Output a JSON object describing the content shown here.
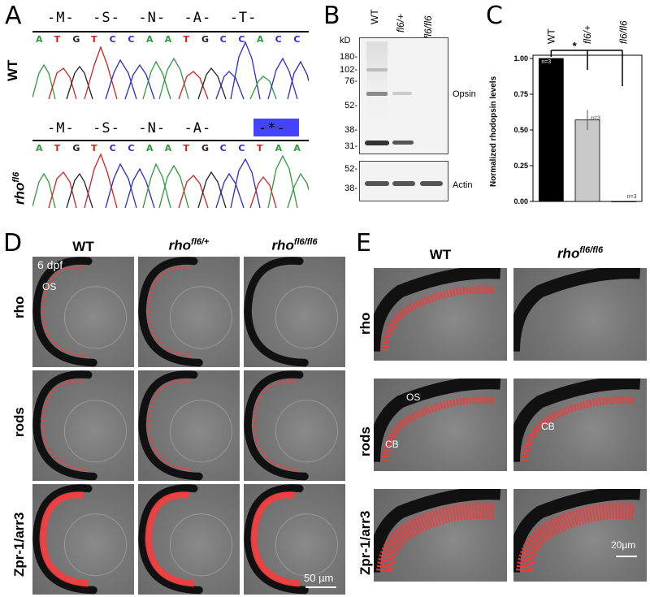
{
  "panels": [
    "A",
    "B",
    "C",
    "D",
    "E"
  ],
  "panel_a": {
    "wt_label": "WT",
    "mut_label_base": "rho",
    "mut_label_sup": "fl6",
    "wt_aa": "-M-  -S-  -N-  -A-  -T-",
    "mut_aa": "-M-  -S-  -N-  -A-",
    "stop_text": "-*-",
    "wt_bases": [
      "A",
      "T",
      "G",
      "T",
      "C",
      "C",
      "A",
      "A",
      "T",
      "G",
      "C",
      "C",
      "A",
      "C",
      "C"
    ],
    "mut_bases": [
      "A",
      "T",
      "G",
      "T",
      "C",
      "C",
      "A",
      "A",
      "T",
      "G",
      "C",
      "C",
      "T",
      "A",
      "A"
    ],
    "base_colors": {
      "A": "#2e9a3a",
      "T": "#d62020",
      "G": "#222222",
      "C": "#2a2ad0"
    },
    "stop_color": "#4444ff"
  },
  "panel_b": {
    "kd_label": "kD",
    "columns": [
      "WT",
      "fl6/+",
      "fl6/fl6"
    ],
    "opsin_markers": [
      "180-",
      "102-",
      "76-",
      "52-",
      "38-",
      "31-"
    ],
    "actin_markers": [
      "52-",
      "38-"
    ],
    "opsin_label": "Opsin",
    "actin_label": "Actin"
  },
  "panel_c": {
    "columns": [
      "WT",
      "fl6/+",
      "fl6/fl6"
    ],
    "star": "*",
    "ytick_labels": [
      "1.00",
      "0.75",
      "0.50",
      "0.25",
      "0.00"
    ],
    "ylabel": "Normalized rhodopsin levels",
    "n_labels": [
      "n=3",
      "n=3",
      "n=3"
    ]
  },
  "chart_data": {
    "type": "bar",
    "categories": [
      "WT",
      "fl6/+",
      "fl6/fl6"
    ],
    "values": [
      1.0,
      0.57,
      0.0
    ],
    "errors": [
      0,
      0.07,
      0
    ],
    "ylabel": "Normalized rhodopsin levels",
    "ylim": [
      0,
      1.0
    ],
    "yticks": [
      0.0,
      0.25,
      0.5,
      0.75,
      1.0
    ],
    "bar_colors": [
      "#000000",
      "#c8c8c8",
      "#ffffff"
    ],
    "n": [
      "n=3",
      "n=3",
      "n=3"
    ],
    "significance": "*",
    "grid": false
  },
  "panel_d": {
    "col_wt": "WT",
    "col_het_base": "rho",
    "col_het_sup": "fl6/+",
    "col_hom_base": "rho",
    "col_hom_sup": "fl6/fl6",
    "rows": [
      "rho",
      "rods",
      "Zpr-1/arr3"
    ],
    "stage": "6 dpf",
    "os_label": "OS",
    "scalebar": "50 µm"
  },
  "panel_e": {
    "col_wt": "WT",
    "col_hom_base": "rho",
    "col_hom_sup": "fl6/fl6",
    "rows": [
      "rho",
      "rods",
      "Zpr-1/arr3"
    ],
    "os_label": "OS",
    "cb_label": "CB",
    "cb_label2": "CB",
    "scalebar": "20µm"
  }
}
